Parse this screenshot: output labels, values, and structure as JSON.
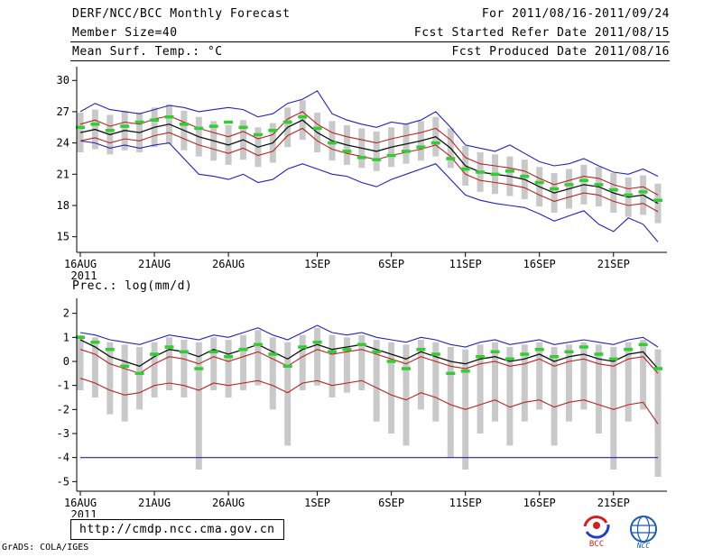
{
  "header": {
    "title": "DERF/NCC/BCC Monthly Forecast",
    "member_size": "Member Size=40",
    "temp_label": "Mean Surf. Temp.: °C",
    "for_range": "For 2011/08/16-2011/09/24",
    "refer_date": "Fcst Started Refer Date 2011/08/15",
    "produced_date": "Fcst Produced Date 2011/08/16"
  },
  "footer": {
    "url": "http://cmdp.ncc.cma.gov.cn",
    "credit": "GrADS: COLA/IGES",
    "logos": [
      "bcc-logo",
      "ncc-logo"
    ]
  },
  "chart_data": [
    {
      "type": "line",
      "title": "Mean Surf. Temp.: °C",
      "n_days": 40,
      "ylim": [
        13.5,
        30.8
      ],
      "yticks": [
        30,
        27,
        24,
        21,
        18,
        15
      ],
      "xtick_positions": [
        0,
        5,
        10,
        16,
        21,
        26,
        31,
        36
      ],
      "xtick_labels": [
        "16AUG",
        "21AUG",
        "26AUG",
        "1SEP",
        "6SEP",
        "11SEP",
        "16SEP",
        "21SEP"
      ],
      "year_label": "2011",
      "grid": false,
      "legend": "none",
      "series": [
        {
          "name": "ensemble-max",
          "color": "#2222bb",
          "width": 1.1,
          "values": [
            27.0,
            27.8,
            27.2,
            27.0,
            26.8,
            27.2,
            27.6,
            27.4,
            27.0,
            27.2,
            27.4,
            27.2,
            26.5,
            26.8,
            27.8,
            28.2,
            29.0,
            26.8,
            26.2,
            25.8,
            25.5,
            26.0,
            25.8,
            26.2,
            27.0,
            25.5,
            23.8,
            23.5,
            23.2,
            23.8,
            23.0,
            22.2,
            21.8,
            22.0,
            22.5,
            21.8,
            21.2,
            21.0,
            21.5,
            20.8
          ]
        },
        {
          "name": "ensemble-min",
          "color": "#2222bb",
          "width": 1.1,
          "values": [
            24.2,
            24.0,
            23.5,
            23.8,
            23.5,
            23.8,
            24.0,
            22.5,
            21.0,
            20.8,
            20.5,
            21.0,
            20.2,
            20.5,
            21.5,
            22.0,
            21.5,
            21.0,
            20.8,
            20.2,
            19.8,
            20.5,
            21.0,
            21.5,
            22.0,
            20.5,
            19.0,
            18.5,
            18.2,
            18.0,
            17.8,
            17.2,
            16.5,
            17.0,
            17.5,
            16.2,
            15.5,
            16.8,
            16.2,
            14.5
          ]
        },
        {
          "name": "upper-quartile",
          "color": "#bb2222",
          "width": 1.1,
          "values": [
            25.8,
            26.2,
            25.6,
            26.0,
            25.8,
            26.3,
            26.6,
            26.0,
            25.4,
            25.0,
            24.6,
            25.1,
            24.4,
            24.8,
            26.3,
            27.0,
            25.8,
            25.0,
            24.6,
            24.3,
            24.0,
            24.4,
            24.7,
            25.0,
            25.4,
            24.3,
            22.6,
            22.0,
            21.8,
            21.6,
            21.3,
            20.6,
            20.0,
            20.4,
            20.8,
            20.6,
            20.0,
            19.6,
            19.8,
            19.0
          ]
        },
        {
          "name": "lower-quartile",
          "color": "#bb2222",
          "width": 1.1,
          "values": [
            24.2,
            24.5,
            24.0,
            24.4,
            24.2,
            24.7,
            25.0,
            24.4,
            23.8,
            23.4,
            23.0,
            23.5,
            22.8,
            23.2,
            24.7,
            25.4,
            24.2,
            23.4,
            23.0,
            22.7,
            22.4,
            22.8,
            23.1,
            23.4,
            23.8,
            22.7,
            21.0,
            20.4,
            20.2,
            20.0,
            19.7,
            19.0,
            18.4,
            18.8,
            19.2,
            19.0,
            18.4,
            18.0,
            18.2,
            17.4
          ]
        },
        {
          "name": "ensemble-mean",
          "color": "#111111",
          "width": 1.3,
          "values": [
            25.0,
            25.3,
            24.8,
            25.2,
            25.0,
            25.5,
            25.8,
            25.2,
            24.6,
            24.2,
            23.8,
            24.3,
            23.6,
            24.0,
            25.5,
            26.2,
            25.0,
            24.2,
            23.8,
            23.5,
            23.2,
            23.6,
            23.9,
            24.2,
            24.6,
            23.5,
            21.8,
            21.2,
            21.0,
            20.8,
            20.5,
            19.8,
            19.2,
            19.6,
            20.0,
            19.8,
            19.2,
            18.8,
            19.0,
            18.2
          ]
        }
      ],
      "dashes": {
        "name": "observation",
        "color": "#33cc33",
        "values": [
          25.5,
          25.8,
          25.2,
          25.6,
          26.0,
          26.2,
          26.5,
          25.8,
          25.4,
          25.6,
          26.0,
          25.5,
          24.8,
          25.2,
          26.0,
          26.5,
          25.4,
          24.0,
          23.2,
          22.6,
          22.4,
          22.8,
          23.2,
          23.6,
          24.0,
          22.5,
          21.5,
          21.2,
          21.0,
          21.3,
          20.8,
          20.2,
          19.6,
          20.0,
          20.4,
          20.0,
          19.5,
          19.0,
          19.3,
          18.5
        ]
      },
      "bars": {
        "name": "ensemble-spread",
        "color": "#c9c9c9",
        "top": [
          26.9,
          27.2,
          26.7,
          27.1,
          26.9,
          27.4,
          27.7,
          27.1,
          26.5,
          26.1,
          25.7,
          26.2,
          25.5,
          25.9,
          27.4,
          28.1,
          26.9,
          26.1,
          25.7,
          25.4,
          25.1,
          25.5,
          25.8,
          26.1,
          26.5,
          25.4,
          23.7,
          23.1,
          22.9,
          22.7,
          22.4,
          21.7,
          21.1,
          21.5,
          21.9,
          21.7,
          21.1,
          20.7,
          20.9,
          20.1
        ],
        "bottom": [
          23.1,
          23.4,
          22.9,
          23.3,
          23.1,
          23.6,
          23.9,
          23.3,
          22.7,
          22.3,
          21.9,
          22.4,
          21.7,
          22.1,
          23.6,
          24.3,
          23.1,
          22.3,
          21.9,
          21.6,
          21.3,
          21.7,
          22.0,
          22.3,
          22.7,
          21.6,
          19.9,
          19.3,
          19.1,
          18.9,
          18.6,
          17.9,
          17.3,
          17.7,
          18.1,
          17.9,
          17.3,
          16.9,
          17.1,
          16.3
        ]
      }
    },
    {
      "type": "line",
      "title": "Prec.: log(mm/d)",
      "n_days": 40,
      "ylim": [
        -5.4,
        2.4
      ],
      "yticks": [
        2,
        1,
        0,
        -1,
        -2,
        -3,
        -4,
        -5
      ],
      "xtick_positions": [
        0,
        5,
        10,
        16,
        21,
        26,
        31,
        36
      ],
      "xtick_labels": [
        "16AUG",
        "21AUG",
        "26AUG",
        "1SEP",
        "6SEP",
        "11SEP",
        "16SEP",
        "21SEP"
      ],
      "year_label": "2011",
      "grid": false,
      "legend": "none",
      "series": [
        {
          "name": "ensemble-max",
          "color": "#2222bb",
          "width": 1.1,
          "values": [
            1.2,
            1.1,
            0.9,
            0.8,
            0.7,
            0.9,
            1.1,
            1.0,
            0.9,
            1.1,
            1.0,
            1.2,
            1.4,
            1.1,
            0.9,
            1.2,
            1.5,
            1.2,
            1.1,
            1.2,
            1.0,
            0.9,
            0.8,
            1.0,
            0.9,
            0.7,
            0.6,
            0.8,
            0.9,
            0.7,
            0.8,
            0.9,
            0.7,
            0.8,
            0.9,
            0.8,
            0.7,
            0.9,
            1.0,
            0.6
          ]
        },
        {
          "name": "ensemble-min",
          "color": "#2222bb",
          "width": 1.1,
          "values": [
            -4.0,
            -4.0,
            -4.0,
            -4.0,
            -4.0,
            -4.0,
            -4.0,
            -4.0,
            -4.0,
            -4.0,
            -4.0,
            -4.0,
            -4.0,
            -4.0,
            -4.0,
            -4.0,
            -4.0,
            -4.0,
            -4.0,
            -4.0,
            -4.0,
            -4.0,
            -4.0,
            -4.0,
            -4.0,
            -4.0,
            -4.0,
            -4.0,
            -4.0,
            -4.0,
            -4.0,
            -4.0,
            -4.0,
            -4.0,
            -4.0,
            -4.0,
            -4.0,
            -4.0,
            -4.0,
            -4.0
          ]
        },
        {
          "name": "upper-quartile",
          "color": "#bb2222",
          "width": 1.1,
          "values": [
            0.5,
            0.3,
            -0.1,
            -0.3,
            -0.5,
            -0.1,
            0.2,
            0.1,
            -0.1,
            0.2,
            0.0,
            0.2,
            0.4,
            0.1,
            -0.2,
            0.2,
            0.5,
            0.3,
            0.4,
            0.5,
            0.3,
            0.1,
            -0.1,
            0.2,
            0.0,
            -0.2,
            -0.3,
            -0.1,
            0.0,
            -0.2,
            -0.1,
            0.1,
            -0.2,
            0.0,
            0.1,
            -0.1,
            -0.2,
            0.1,
            0.2,
            -0.5
          ]
        },
        {
          "name": "lower-quartile",
          "color": "#bb2222",
          "width": 1.1,
          "values": [
            -0.7,
            -0.9,
            -1.2,
            -1.4,
            -1.3,
            -1.0,
            -0.9,
            -1.0,
            -1.2,
            -0.9,
            -1.0,
            -0.9,
            -0.8,
            -1.0,
            -1.3,
            -0.9,
            -0.8,
            -1.0,
            -0.9,
            -0.8,
            -1.1,
            -1.4,
            -1.6,
            -1.3,
            -1.5,
            -1.8,
            -2.0,
            -1.8,
            -1.6,
            -1.9,
            -1.7,
            -1.6,
            -1.9,
            -1.7,
            -1.6,
            -1.8,
            -2.0,
            -1.8,
            -1.7,
            -2.6
          ]
        },
        {
          "name": "ensemble-mean",
          "color": "#111111",
          "width": 1.3,
          "values": [
            0.9,
            0.6,
            0.2,
            0.0,
            -0.2,
            0.2,
            0.5,
            0.4,
            0.2,
            0.5,
            0.3,
            0.5,
            0.7,
            0.4,
            0.1,
            0.5,
            0.7,
            0.5,
            0.6,
            0.7,
            0.5,
            0.3,
            0.1,
            0.4,
            0.2,
            0.0,
            -0.1,
            0.1,
            0.2,
            0.0,
            0.1,
            0.3,
            0.0,
            0.2,
            0.3,
            0.1,
            0.0,
            0.3,
            0.4,
            -0.3
          ]
        }
      ],
      "dashes": {
        "name": "observation",
        "color": "#33cc33",
        "values": [
          1.0,
          0.8,
          0.5,
          -0.2,
          -0.5,
          0.3,
          0.6,
          0.4,
          -0.3,
          0.4,
          0.2,
          0.5,
          0.7,
          0.3,
          -0.2,
          0.6,
          0.8,
          0.4,
          0.5,
          0.7,
          0.4,
          0.0,
          -0.3,
          0.5,
          0.3,
          -0.5,
          -0.4,
          0.2,
          0.4,
          0.1,
          0.3,
          0.5,
          0.2,
          0.4,
          0.6,
          0.3,
          0.1,
          0.5,
          0.7,
          -0.3
        ]
      },
      "bars": {
        "name": "ensemble-spread",
        "color": "#c9c9c9",
        "top": [
          1.1,
          1.0,
          0.8,
          0.7,
          0.6,
          0.8,
          1.0,
          0.9,
          0.8,
          1.0,
          0.9,
          1.1,
          1.3,
          1.0,
          0.8,
          1.1,
          1.4,
          1.1,
          1.0,
          1.1,
          0.9,
          0.8,
          0.7,
          0.9,
          0.8,
          0.6,
          0.5,
          0.7,
          0.8,
          0.6,
          0.7,
          0.8,
          0.6,
          0.7,
          0.8,
          0.7,
          0.6,
          0.8,
          0.9,
          0.5
        ],
        "bottom": [
          -1.2,
          -1.5,
          -2.2,
          -2.5,
          -2.0,
          -1.5,
          -1.2,
          -1.5,
          -4.5,
          -1.2,
          -1.5,
          -1.2,
          -1.0,
          -2.0,
          -3.5,
          -1.2,
          -1.0,
          -1.5,
          -1.3,
          -1.2,
          -2.5,
          -3.0,
          -3.5,
          -2.0,
          -2.5,
          -4.0,
          -4.5,
          -3.0,
          -2.5,
          -3.5,
          -2.5,
          -2.0,
          -3.5,
          -2.5,
          -2.0,
          -3.0,
          -4.5,
          -2.5,
          -2.0,
          -4.8
        ]
      }
    }
  ]
}
